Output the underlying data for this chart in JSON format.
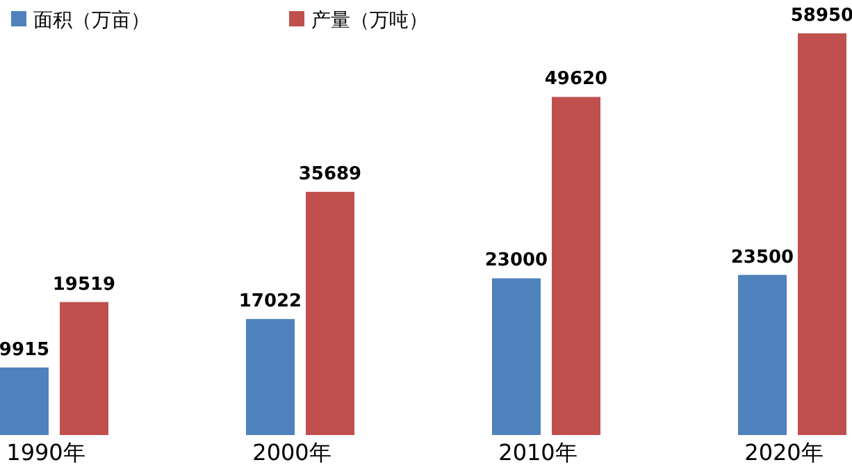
{
  "chart_data": {
    "type": "bar",
    "categories": [
      "1990年",
      "2000年",
      "2010年",
      "2020年"
    ],
    "series": [
      {
        "name": "面积（万亩）",
        "color": "#4f81bd",
        "values": [
          9915,
          17022,
          23000,
          23500
        ]
      },
      {
        "name": "产量（万吨）",
        "color": "#c0504d",
        "values": [
          19519,
          35689,
          49620,
          58950
        ]
      }
    ],
    "data_labels": true,
    "legend": "top left",
    "grid": false
  }
}
